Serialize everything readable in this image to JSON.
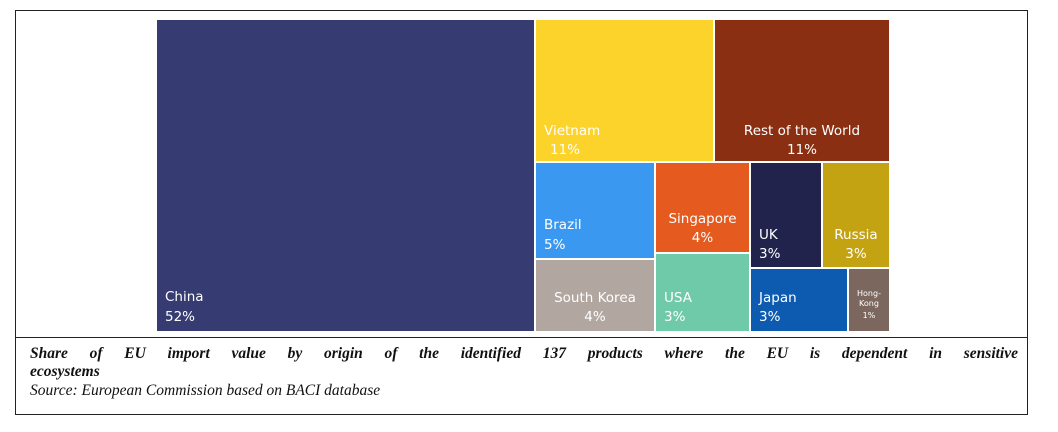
{
  "chart_data": {
    "type": "treemap",
    "cells": [
      {
        "name": "China",
        "value_label": "52%",
        "value": 52,
        "color": "#363b72"
      },
      {
        "name": "Vietnam",
        "value_label": "11%",
        "value": 11,
        "color": "#fcd32a"
      },
      {
        "name": "Rest of the World",
        "value_label": "11%",
        "value": 11,
        "color": "#8b2f12"
      },
      {
        "name": "Brazil",
        "value_label": "5%",
        "value": 5,
        "color": "#3a98f0"
      },
      {
        "name": "Singapore",
        "value_label": "4%",
        "value": 4,
        "color": "#e55a1f"
      },
      {
        "name": "UK",
        "value_label": "3%",
        "value": 3,
        "color": "#22234d"
      },
      {
        "name": "Russia",
        "value_label": "3%",
        "value": 3,
        "color": "#c4a313"
      },
      {
        "name": "South Korea",
        "value_label": "4%",
        "value": 4,
        "color": "#b2a6a0"
      },
      {
        "name": "USA",
        "value_label": "3%",
        "value": 3,
        "color": "#6fcaa9"
      },
      {
        "name": "Japan",
        "value_label": "3%",
        "value": 3,
        "color": "#0d5bb0"
      },
      {
        "name": "Hong-Kong",
        "value_label": "1%",
        "value": 1,
        "color": "#7b675d"
      }
    ]
  },
  "caption": {
    "title_line1": "Share of EU import value by origin of the identified 137 products where the EU is dependent in sensitive",
    "title_line2": "ecosystems",
    "source": "Source: European Commission based on BACI database"
  }
}
